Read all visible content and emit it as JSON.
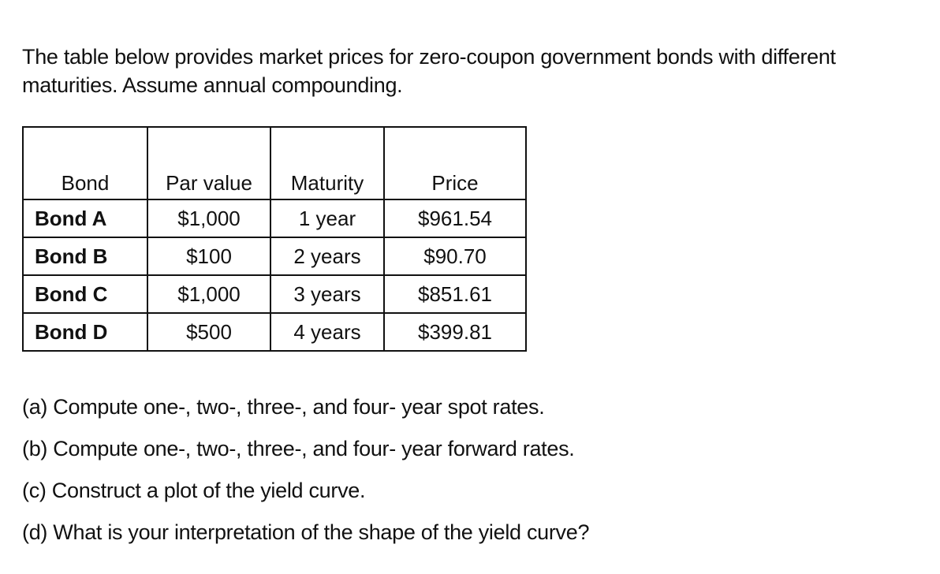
{
  "intro": {
    "line1": "The table below provides market prices for zero-coupon government bonds with different",
    "line2": "maturities. Assume annual compounding."
  },
  "table": {
    "headers": [
      "Bond",
      "Par value",
      "Maturity",
      "Price"
    ],
    "rows": [
      [
        "Bond A",
        "$1,000",
        "1 year",
        "$961.54"
      ],
      [
        "Bond B",
        "$100",
        "2 years",
        "$90.70"
      ],
      [
        "Bond C",
        "$1,000",
        "3 years",
        "$851.61"
      ],
      [
        "Bond D",
        "$500",
        "4 years",
        "$399.81"
      ]
    ]
  },
  "questions": [
    "(a)  Compute one-, two-, three-, and four- year spot rates.",
    "(b)  Compute one-, two-, three-, and four- year forward rates.",
    "(c)  Construct a plot of the yield curve.",
    "(d) What is your interpretation of the shape of the yield curve?"
  ]
}
